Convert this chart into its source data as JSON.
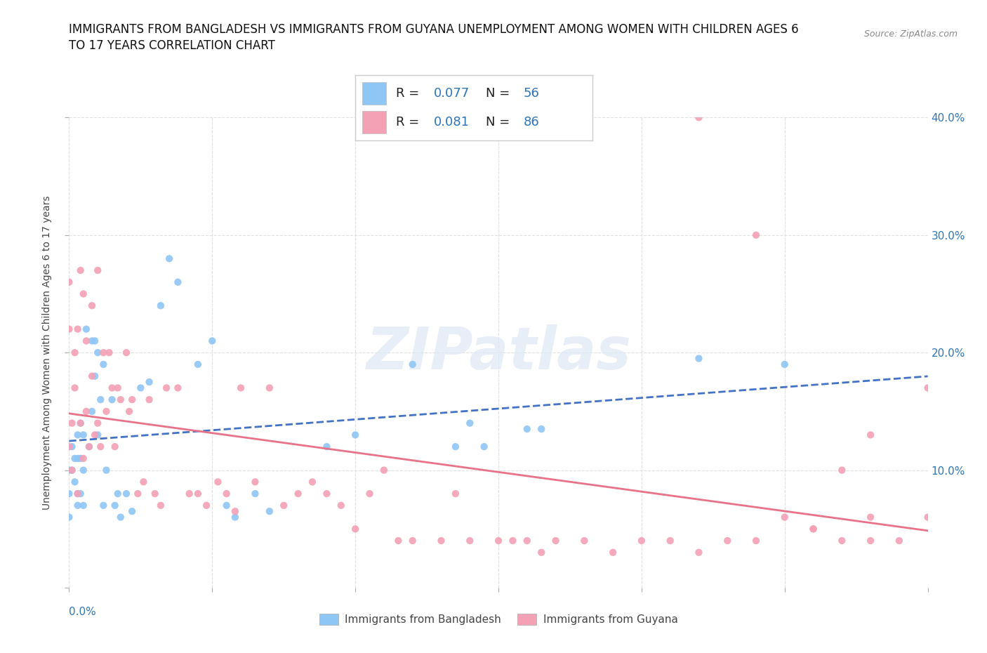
{
  "title_line1": "IMMIGRANTS FROM BANGLADESH VS IMMIGRANTS FROM GUYANA UNEMPLOYMENT AMONG WOMEN WITH CHILDREN AGES 6",
  "title_line2": "TO 17 YEARS CORRELATION CHART",
  "source": "Source: ZipAtlas.com",
  "ylabel": "Unemployment Among Women with Children Ages 6 to 17 years",
  "watermark": "ZIPatlas",
  "series": [
    {
      "name": "Immigrants from Bangladesh",
      "color": "#8ec6f5",
      "R": 0.077,
      "N": 56,
      "x": [
        0.0,
        0.0,
        0.0,
        0.001,
        0.001,
        0.002,
        0.002,
        0.003,
        0.003,
        0.003,
        0.004,
        0.004,
        0.005,
        0.005,
        0.005,
        0.006,
        0.007,
        0.008,
        0.008,
        0.009,
        0.009,
        0.01,
        0.01,
        0.011,
        0.012,
        0.012,
        0.013,
        0.015,
        0.016,
        0.017,
        0.018,
        0.02,
        0.022,
        0.025,
        0.028,
        0.032,
        0.035,
        0.038,
        0.045,
        0.05,
        0.055,
        0.058,
        0.065,
        0.07,
        0.09,
        0.1,
        0.12,
        0.135,
        0.14,
        0.145,
        0.16,
        0.165,
        0.22,
        0.25,
        0.003,
        0.004
      ],
      "y": [
        0.1,
        0.08,
        0.06,
        0.12,
        0.1,
        0.11,
        0.09,
        0.08,
        0.13,
        0.07,
        0.14,
        0.08,
        0.13,
        0.1,
        0.07,
        0.22,
        0.12,
        0.21,
        0.15,
        0.21,
        0.18,
        0.2,
        0.13,
        0.16,
        0.19,
        0.07,
        0.1,
        0.16,
        0.07,
        0.08,
        0.06,
        0.08,
        0.065,
        0.17,
        0.175,
        0.24,
        0.28,
        0.26,
        0.19,
        0.21,
        0.07,
        0.06,
        0.08,
        0.065,
        0.12,
        0.13,
        0.19,
        0.12,
        0.14,
        0.12,
        0.135,
        0.135,
        0.195,
        0.19,
        0.11,
        0.11
      ]
    },
    {
      "name": "Immigrants from Guyana",
      "color": "#f4a0b5",
      "R": 0.081,
      "N": 86,
      "x": [
        0.0,
        0.0,
        0.0,
        0.001,
        0.001,
        0.002,
        0.002,
        0.003,
        0.003,
        0.004,
        0.004,
        0.005,
        0.005,
        0.006,
        0.006,
        0.007,
        0.008,
        0.008,
        0.009,
        0.01,
        0.01,
        0.011,
        0.012,
        0.013,
        0.014,
        0.015,
        0.016,
        0.017,
        0.018,
        0.02,
        0.021,
        0.022,
        0.024,
        0.026,
        0.028,
        0.03,
        0.032,
        0.034,
        0.038,
        0.042,
        0.045,
        0.048,
        0.052,
        0.055,
        0.058,
        0.06,
        0.065,
        0.07,
        0.075,
        0.08,
        0.085,
        0.09,
        0.095,
        0.1,
        0.105,
        0.11,
        0.115,
        0.12,
        0.13,
        0.135,
        0.14,
        0.15,
        0.155,
        0.16,
        0.165,
        0.17,
        0.18,
        0.19,
        0.2,
        0.21,
        0.22,
        0.23,
        0.24,
        0.25,
        0.26,
        0.27,
        0.28,
        0.27,
        0.28,
        0.29,
        0.22,
        0.24,
        0.26,
        0.3,
        0.28,
        0.3
      ],
      "y": [
        0.26,
        0.22,
        0.12,
        0.14,
        0.1,
        0.2,
        0.17,
        0.22,
        0.08,
        0.27,
        0.14,
        0.11,
        0.25,
        0.21,
        0.15,
        0.12,
        0.18,
        0.24,
        0.13,
        0.27,
        0.14,
        0.12,
        0.2,
        0.15,
        0.2,
        0.17,
        0.12,
        0.17,
        0.16,
        0.2,
        0.15,
        0.16,
        0.08,
        0.09,
        0.16,
        0.08,
        0.07,
        0.17,
        0.17,
        0.08,
        0.08,
        0.07,
        0.09,
        0.08,
        0.065,
        0.17,
        0.09,
        0.17,
        0.07,
        0.08,
        0.09,
        0.08,
        0.07,
        0.05,
        0.08,
        0.1,
        0.04,
        0.04,
        0.04,
        0.08,
        0.04,
        0.04,
        0.04,
        0.04,
        0.03,
        0.04,
        0.04,
        0.03,
        0.04,
        0.04,
        0.03,
        0.04,
        0.04,
        0.06,
        0.05,
        0.04,
        0.04,
        0.1,
        0.13,
        0.04,
        0.4,
        0.3,
        0.05,
        0.17,
        0.06,
        0.06
      ]
    }
  ],
  "trendline_color_bangladesh": "#4472c4",
  "trendline_color_guyana": "#e8728a",
  "xlim": [
    0.0,
    0.3
  ],
  "ylim": [
    0.0,
    0.4
  ],
  "xticks": [
    0.0,
    0.05,
    0.1,
    0.15,
    0.2,
    0.25,
    0.3
  ],
  "yticks_right": [
    0.1,
    0.2,
    0.3,
    0.4
  ],
  "grid_color": "#e0e0e0",
  "bg_color": "#ffffff",
  "legend_color": "#2e75b6",
  "title_fontsize": 12,
  "axis_label_fontsize": 10,
  "tick_label_fontsize": 11
}
